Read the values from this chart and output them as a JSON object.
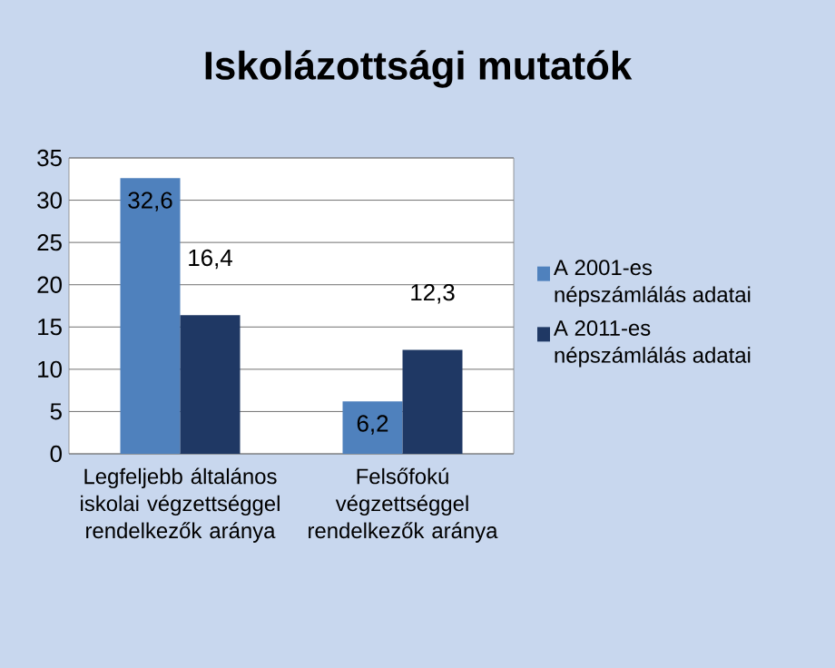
{
  "chart_data": {
    "type": "bar",
    "title": "Iskolázottsági mutatók",
    "categories": [
      "Legfeljebb általános iskolai végzettséggel rendelkezők aránya",
      "Felsőfokú végzettséggel rendelkezők aránya"
    ],
    "series": [
      {
        "name": "A 2001-es népszámlálás adatai",
        "color": "#4f81bd",
        "values": [
          32.6,
          6.2
        ],
        "value_labels": [
          "32,6",
          "6,2"
        ]
      },
      {
        "name": "A 2011-es népszámlálás adatai",
        "color": "#1f3864",
        "values": [
          16.4,
          12.3
        ],
        "value_labels": [
          "16,4",
          "12,3"
        ]
      }
    ],
    "ylim": [
      0,
      35
    ],
    "yticks": [
      0,
      5,
      10,
      15,
      20,
      25,
      30,
      35
    ],
    "grid": "y",
    "legend": "right"
  }
}
